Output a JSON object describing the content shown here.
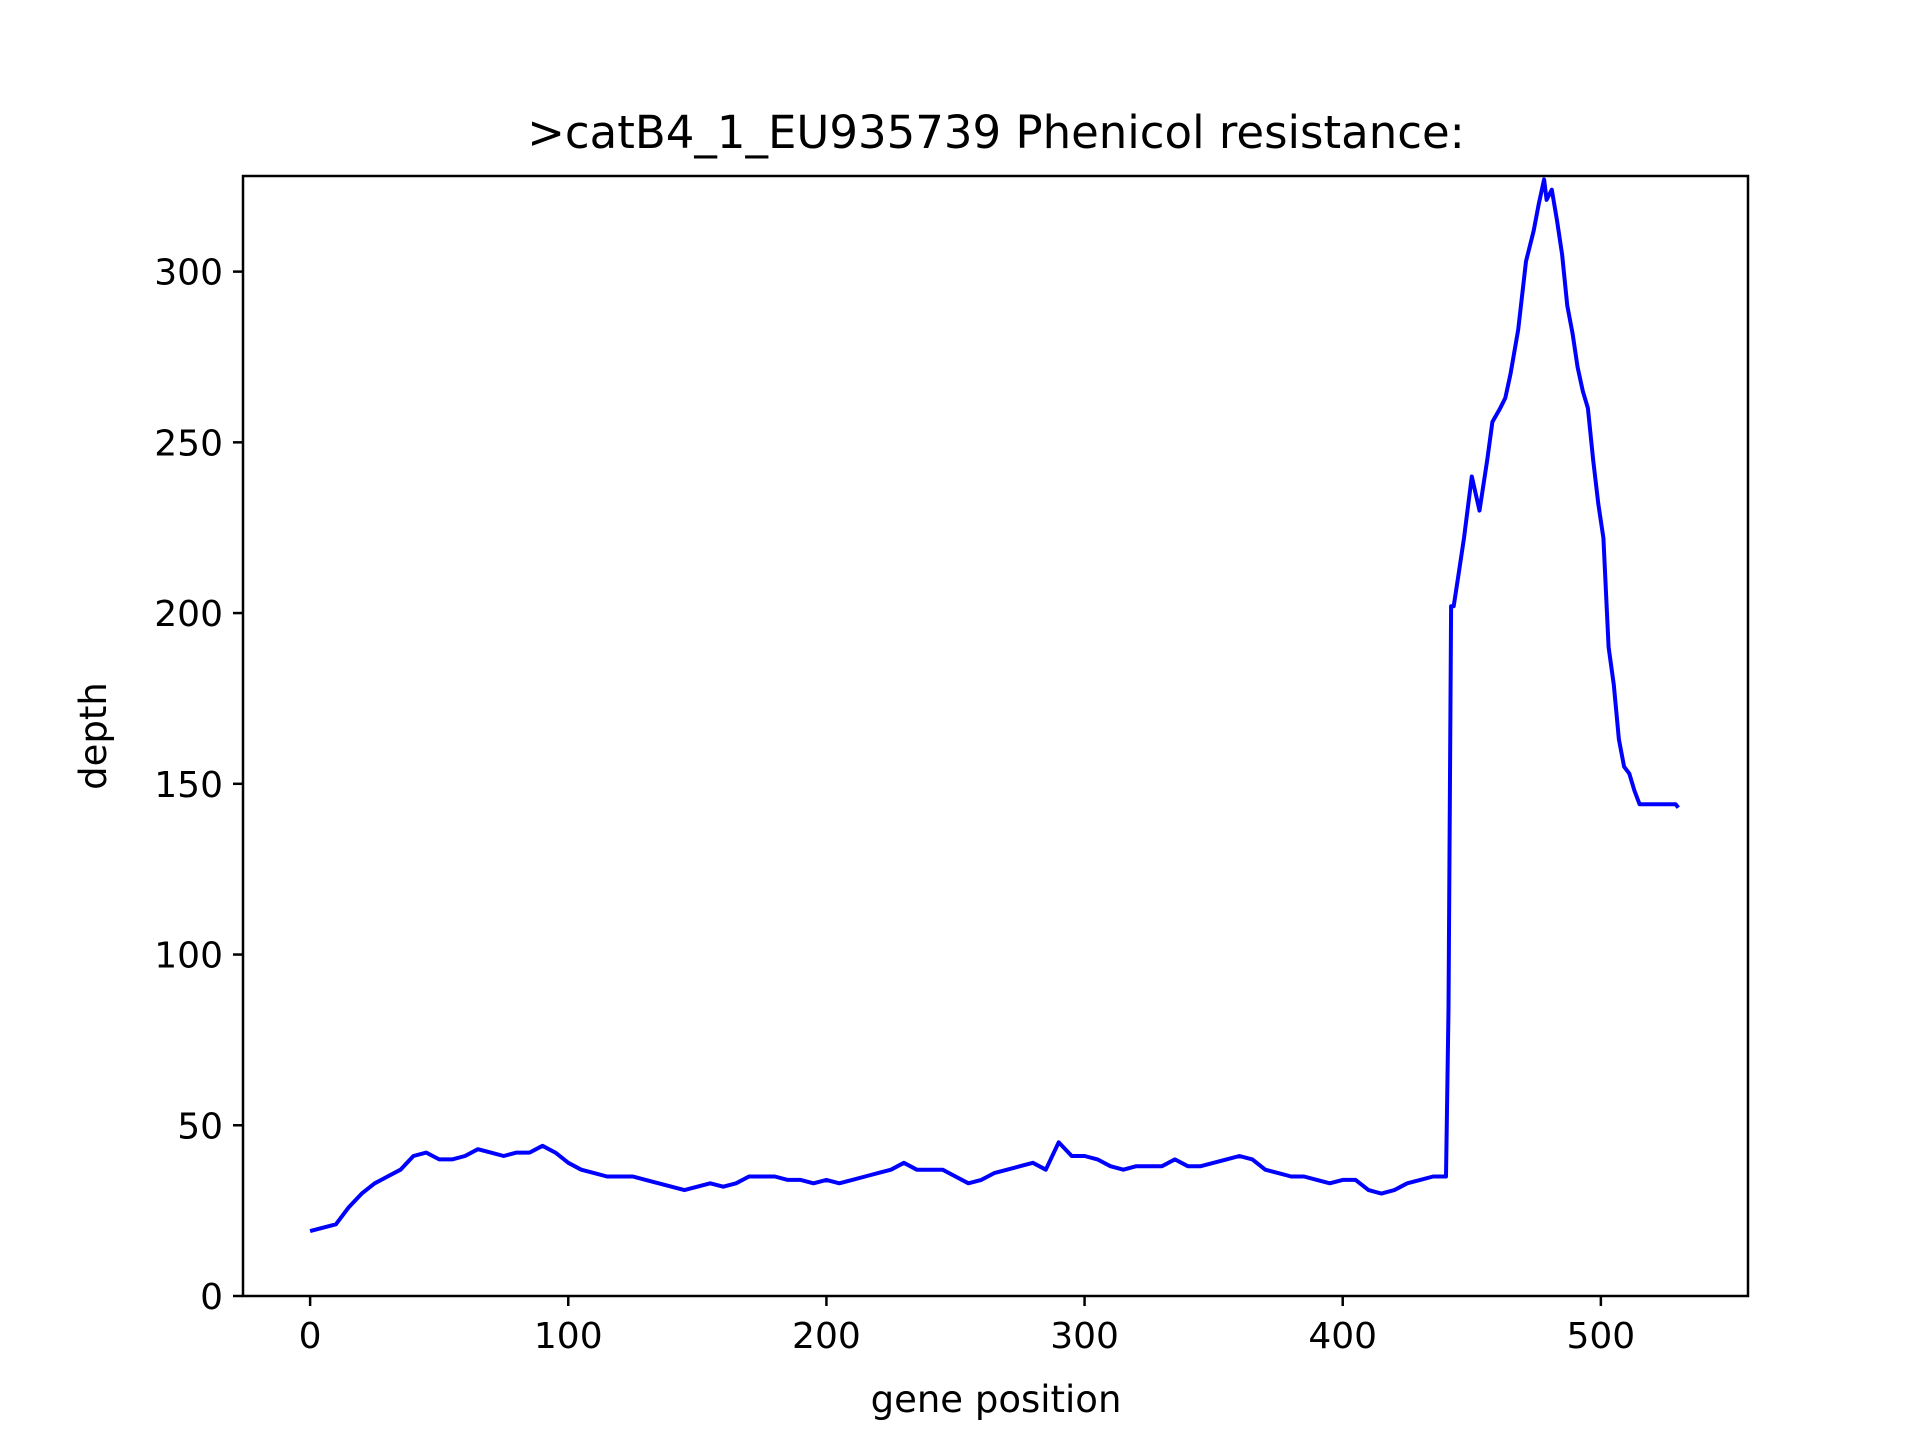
{
  "chart_data": {
    "type": "line",
    "title": ">catB4_1_EU935739 Phenicol resistance:",
    "xlabel": "gene position",
    "ylabel": "depth",
    "xlim": [
      -26,
      557
    ],
    "ylim": [
      0,
      328
    ],
    "xticks": [
      0,
      100,
      200,
      300,
      400,
      500
    ],
    "yticks": [
      0,
      50,
      100,
      150,
      200,
      250,
      300
    ],
    "grid": false,
    "legend": "none",
    "series": [
      {
        "color": "#0000ff",
        "x": [
          0,
          5,
          10,
          15,
          20,
          25,
          30,
          35,
          40,
          45,
          50,
          55,
          60,
          65,
          70,
          75,
          80,
          85,
          90,
          95,
          100,
          105,
          110,
          115,
          120,
          125,
          130,
          135,
          140,
          145,
          150,
          155,
          160,
          165,
          170,
          175,
          180,
          185,
          190,
          195,
          200,
          205,
          210,
          215,
          220,
          225,
          230,
          235,
          240,
          245,
          250,
          255,
          260,
          265,
          270,
          275,
          280,
          285,
          290,
          295,
          300,
          305,
          310,
          315,
          320,
          325,
          330,
          335,
          340,
          345,
          350,
          355,
          360,
          365,
          370,
          375,
          380,
          385,
          390,
          395,
          400,
          405,
          410,
          415,
          420,
          425,
          430,
          435,
          440,
          441,
          442,
          443,
          445,
          447,
          450,
          453,
          455,
          456,
          458,
          461,
          463,
          465,
          468,
          471,
          474,
          476,
          478,
          479,
          481,
          483,
          485,
          487,
          489,
          491,
          493,
          495,
          497,
          499,
          501,
          503,
          505,
          507,
          509,
          511,
          513,
          515,
          517,
          519,
          521,
          523,
          525,
          527,
          529,
          530
        ],
        "y": [
          19,
          20,
          21,
          26,
          30,
          33,
          35,
          37,
          41,
          42,
          40,
          40,
          41,
          43,
          42,
          41,
          42,
          42,
          44,
          42,
          39,
          37,
          36,
          35,
          35,
          35,
          34,
          33,
          32,
          31,
          32,
          33,
          32,
          33,
          35,
          35,
          35,
          34,
          34,
          33,
          34,
          33,
          34,
          35,
          36,
          37,
          39,
          37,
          37,
          37,
          35,
          33,
          34,
          36,
          37,
          38,
          39,
          37,
          45,
          41,
          41,
          40,
          38,
          37,
          38,
          38,
          38,
          40,
          38,
          38,
          39,
          40,
          41,
          40,
          37,
          36,
          35,
          35,
          34,
          33,
          34,
          34,
          31,
          30,
          31,
          33,
          34,
          35,
          35,
          84,
          202,
          202,
          212,
          222,
          240,
          230,
          240,
          245,
          256,
          260,
          263,
          270,
          283,
          303,
          312,
          320,
          327,
          321,
          324,
          315,
          305,
          290,
          282,
          272,
          265,
          260,
          245,
          232,
          222,
          190,
          179,
          163,
          155,
          153,
          148,
          144,
          144,
          144,
          144,
          144,
          144,
          144,
          144,
          143
        ]
      }
    ]
  }
}
